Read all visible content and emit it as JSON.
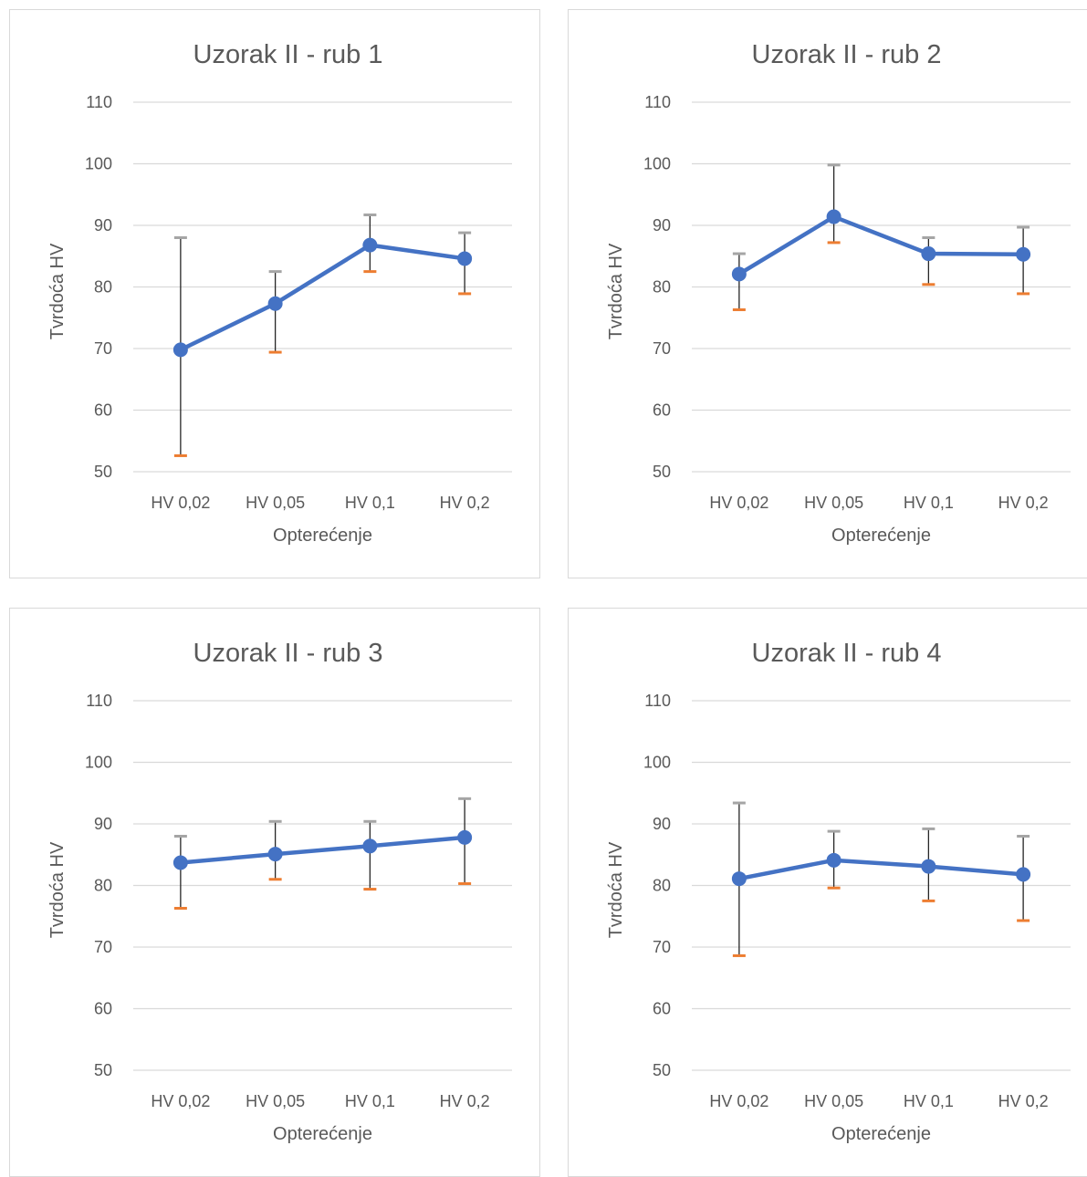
{
  "colors": {
    "line": "#4472c4",
    "upper_cap": "#a5a5a5",
    "lower_cap": "#ed7d31",
    "grid": "#d9d9d9",
    "errbar": "#262626",
    "text": "#595959"
  },
  "chart_data": [
    {
      "type": "line",
      "title": "Uzorak II - rub 1",
      "xlabel": "Opterećenje",
      "ylabel": "Tvrdoća HV",
      "categories": [
        "HV 0,02",
        "HV 0,05",
        "HV 0,1",
        "HV 0,2"
      ],
      "ylim": [
        50,
        110
      ],
      "yticks": [
        50,
        60,
        70,
        80,
        90,
        100,
        110
      ],
      "grid": true,
      "series": [
        {
          "values": [
            69.8,
            77.3,
            86.8,
            84.6
          ],
          "upper": [
            88.0,
            82.5,
            91.7,
            88.8
          ],
          "lower": [
            52.6,
            69.4,
            82.5,
            78.9
          ]
        }
      ]
    },
    {
      "type": "line",
      "title": "Uzorak II - rub 2",
      "xlabel": "Opterećenje",
      "ylabel": "Tvrdoća HV",
      "categories": [
        "HV 0,02",
        "HV 0,05",
        "HV 0,1",
        "HV 0,2"
      ],
      "ylim": [
        50,
        110
      ],
      "yticks": [
        50,
        60,
        70,
        80,
        90,
        100,
        110
      ],
      "grid": true,
      "series": [
        {
          "values": [
            82.1,
            91.4,
            85.4,
            85.3
          ],
          "upper": [
            85.4,
            99.8,
            88.0,
            89.7
          ],
          "lower": [
            76.3,
            87.2,
            80.4,
            78.9
          ]
        }
      ]
    },
    {
      "type": "line",
      "title": "Uzorak II - rub 3",
      "xlabel": "Opterećenje",
      "ylabel": "Tvrdoća HV",
      "categories": [
        "HV 0,02",
        "HV 0,05",
        "HV 0,1",
        "HV 0,2"
      ],
      "ylim": [
        50,
        110
      ],
      "yticks": [
        50,
        60,
        70,
        80,
        90,
        100,
        110
      ],
      "grid": true,
      "series": [
        {
          "values": [
            83.7,
            85.1,
            86.4,
            87.8
          ],
          "upper": [
            88.0,
            90.4,
            90.4,
            94.1
          ],
          "lower": [
            76.3,
            81.0,
            79.4,
            80.3
          ]
        }
      ]
    },
    {
      "type": "line",
      "title": "Uzorak II - rub 4",
      "xlabel": "Opterećenje",
      "ylabel": "Tvrdoća HV",
      "categories": [
        "HV 0,02",
        "HV 0,05",
        "HV 0,1",
        "HV 0,2"
      ],
      "ylim": [
        50,
        110
      ],
      "yticks": [
        50,
        60,
        70,
        80,
        90,
        100,
        110
      ],
      "grid": true,
      "series": [
        {
          "values": [
            81.1,
            84.1,
            83.1,
            81.8
          ],
          "upper": [
            93.4,
            88.8,
            89.2,
            88.0
          ],
          "lower": [
            68.6,
            79.6,
            77.5,
            74.3
          ]
        }
      ]
    }
  ]
}
